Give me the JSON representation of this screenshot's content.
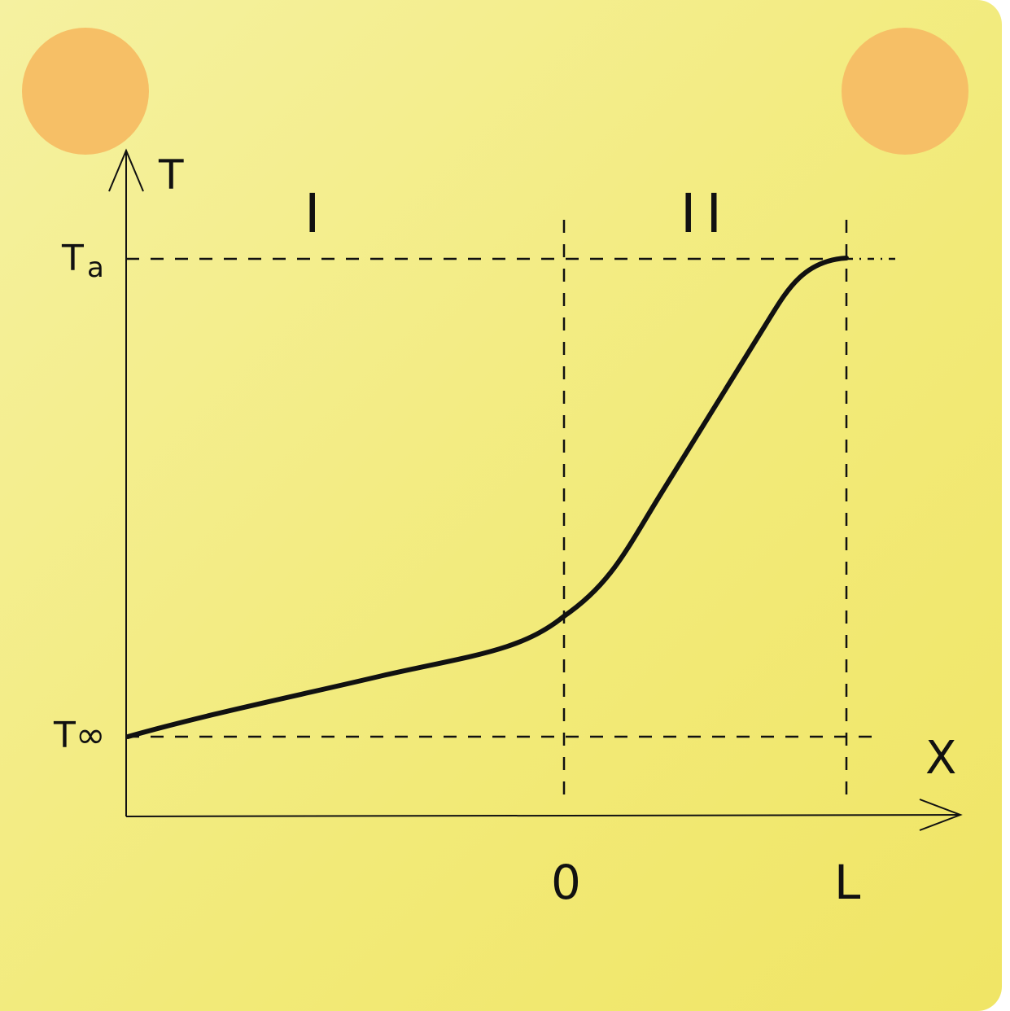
{
  "axes": {
    "y_label": "T",
    "x_label": "X"
  },
  "y_ticks": {
    "top": "T",
    "top_sub": "a",
    "bottom": "T∞"
  },
  "x_ticks": {
    "origin": "0",
    "end": "L"
  },
  "regions": {
    "left": "I",
    "right": "II"
  },
  "colors": {
    "background_start": "#f5f1a0",
    "background_end": "#f0e565",
    "dots": "#f6bf66",
    "ink": "#111111"
  }
}
